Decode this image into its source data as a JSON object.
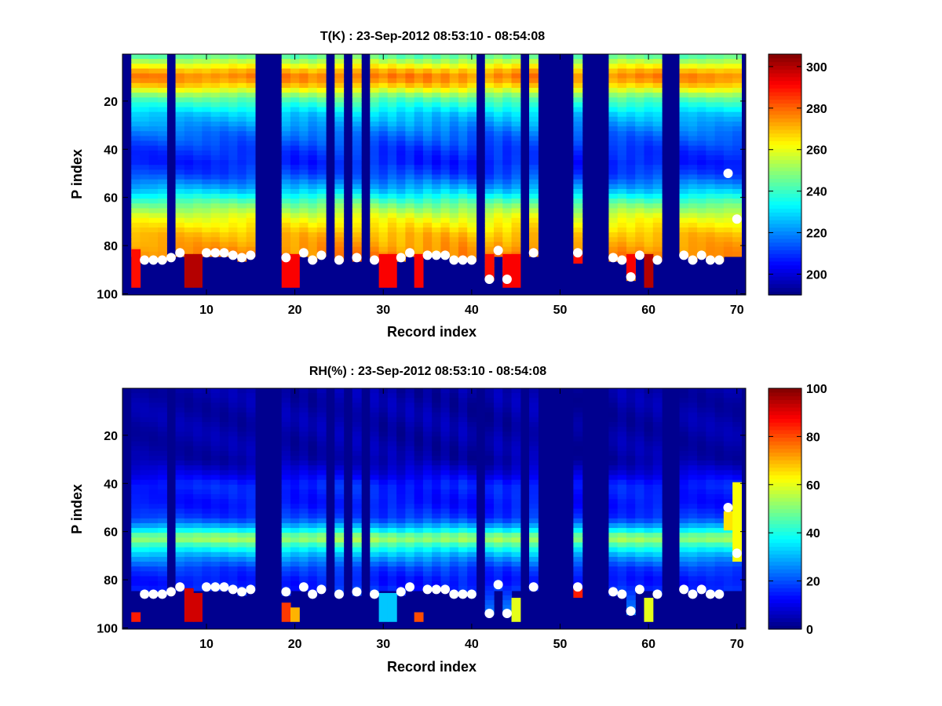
{
  "chart_data": [
    {
      "type": "heatmap",
      "title": "T(K) : 23-Sep-2012 08:53:10 - 08:54:08",
      "xlabel": "Record index",
      "ylabel": "P index",
      "xlim": [
        0.5,
        71
      ],
      "ylim": [
        100,
        1
      ],
      "xticks": [
        10,
        20,
        30,
        40,
        50,
        60,
        70
      ],
      "yticks": [
        20,
        40,
        60,
        80,
        100
      ],
      "colorbar": {
        "range": [
          190,
          306
        ],
        "ticks": [
          200,
          220,
          240,
          260,
          280,
          300
        ]
      },
      "colormap": "jet",
      "background_color": "#00008f",
      "valid_records": [
        2,
        3,
        4,
        5,
        7,
        8,
        9,
        10,
        11,
        12,
        13,
        14,
        15,
        19,
        20,
        21,
        22,
        23,
        25,
        27,
        29,
        30,
        31,
        32,
        33,
        34,
        35,
        36,
        37,
        38,
        39,
        40,
        42,
        43,
        44,
        45,
        47,
        52,
        56,
        57,
        58,
        59,
        60,
        61,
        64,
        65,
        66,
        67,
        68,
        69,
        70
      ],
      "profile": {
        "levels": [
          1,
          5,
          8,
          10,
          13,
          18,
          25,
          33,
          40,
          45,
          50,
          56,
          62,
          68,
          75,
          82,
          88,
          100
        ],
        "values": [
          245,
          262,
          275,
          277,
          268,
          245,
          228,
          217,
          210,
          208,
          212,
          225,
          245,
          260,
          270,
          275,
          278,
          280
        ]
      },
      "surface_markers": {
        "records": [
          3,
          4,
          5,
          6,
          7,
          10,
          11,
          12,
          13,
          14,
          15,
          19,
          21,
          22,
          23,
          25,
          27,
          29,
          32,
          33,
          35,
          36,
          37,
          38,
          39,
          40,
          42,
          43,
          44,
          47,
          52,
          56,
          57,
          58,
          59,
          61,
          64,
          65,
          66,
          67,
          68,
          69,
          70
        ],
        "levels": [
          86,
          86,
          86,
          85,
          83,
          83,
          83,
          83,
          84,
          85,
          84,
          85,
          83,
          86,
          84,
          86,
          85,
          86,
          85,
          83,
          84,
          84,
          84,
          86,
          86,
          86,
          94,
          82,
          94,
          83,
          83,
          85,
          86,
          93,
          84,
          86,
          84,
          86,
          84,
          86,
          86,
          50,
          69
        ]
      },
      "hot_columns": [
        {
          "record": 2,
          "from": 82,
          "to": 97,
          "value": 290
        },
        {
          "record": 8,
          "from": 84,
          "to": 97,
          "value": 300
        },
        {
          "record": 9,
          "from": 84,
          "to": 97,
          "value": 300
        },
        {
          "record": 19,
          "from": 84,
          "to": 97,
          "value": 292
        },
        {
          "record": 20,
          "from": 84,
          "to": 97,
          "value": 292
        },
        {
          "record": 30,
          "from": 84,
          "to": 97,
          "value": 292
        },
        {
          "record": 31,
          "from": 84,
          "to": 97,
          "value": 292
        },
        {
          "record": 34,
          "from": 84,
          "to": 97,
          "value": 292
        },
        {
          "record": 42,
          "from": 84,
          "to": 94,
          "value": 290
        },
        {
          "record": 44,
          "from": 84,
          "to": 97,
          "value": 292
        },
        {
          "record": 45,
          "from": 84,
          "to": 97,
          "value": 292
        },
        {
          "record": 52,
          "from": 84,
          "to": 87,
          "value": 290
        },
        {
          "record": 58,
          "from": 84,
          "to": 93,
          "value": 292
        },
        {
          "record": 60,
          "from": 84,
          "to": 97,
          "value": 300
        }
      ]
    },
    {
      "type": "heatmap",
      "title": "RH(%) : 23-Sep-2012 08:53:10 - 08:54:08",
      "xlabel": "Record index",
      "ylabel": "P index",
      "xlim": [
        0.5,
        71
      ],
      "ylim": [
        100,
        1
      ],
      "xticks": [
        10,
        20,
        30,
        40,
        50,
        60,
        70
      ],
      "yticks": [
        20,
        40,
        60,
        80,
        100
      ],
      "colorbar": {
        "range": [
          0,
          100
        ],
        "ticks": [
          0,
          20,
          40,
          60,
          80,
          100
        ]
      },
      "colormap": "jet",
      "background_color": "#00008f",
      "valid_records": [
        2,
        3,
        4,
        5,
        7,
        8,
        9,
        10,
        11,
        12,
        13,
        14,
        15,
        19,
        20,
        21,
        22,
        23,
        25,
        27,
        29,
        30,
        31,
        32,
        33,
        34,
        35,
        36,
        37,
        38,
        39,
        40,
        42,
        43,
        44,
        45,
        47,
        52,
        56,
        57,
        58,
        59,
        60,
        61,
        64,
        65,
        66,
        67,
        68,
        69,
        70
      ],
      "profile": {
        "levels": [
          1,
          30,
          36,
          40,
          48,
          54,
          58,
          61,
          63,
          66,
          70,
          75,
          80,
          86,
          90,
          96,
          100
        ],
        "values": [
          4,
          4,
          10,
          16,
          14,
          18,
          32,
          48,
          52,
          40,
          28,
          18,
          14,
          18,
          24,
          30,
          30
        ]
      },
      "surface_markers": {
        "records": [
          3,
          4,
          5,
          6,
          7,
          10,
          11,
          12,
          13,
          14,
          15,
          19,
          21,
          22,
          23,
          25,
          27,
          29,
          32,
          33,
          35,
          36,
          37,
          38,
          39,
          40,
          42,
          43,
          44,
          47,
          52,
          56,
          57,
          58,
          59,
          61,
          64,
          65,
          66,
          67,
          68,
          69,
          70
        ],
        "levels": [
          86,
          86,
          86,
          85,
          83,
          83,
          83,
          83,
          84,
          85,
          84,
          85,
          83,
          86,
          84,
          86,
          85,
          86,
          85,
          83,
          84,
          84,
          84,
          86,
          86,
          86,
          94,
          82,
          94,
          83,
          83,
          85,
          86,
          93,
          84,
          86,
          84,
          86,
          84,
          86,
          86,
          50,
          69
        ]
      },
      "hot_columns": [
        {
          "record": 2,
          "from": 94,
          "to": 97,
          "value": 85
        },
        {
          "record": 8,
          "from": 84,
          "to": 97,
          "value": 92
        },
        {
          "record": 9,
          "from": 86,
          "to": 97,
          "value": 92
        },
        {
          "record": 19,
          "from": 90,
          "to": 97,
          "value": 82
        },
        {
          "record": 20,
          "from": 92,
          "to": 97,
          "value": 70
        },
        {
          "record": 30,
          "from": 86,
          "to": 97,
          "value": 32
        },
        {
          "record": 31,
          "from": 86,
          "to": 97,
          "value": 32
        },
        {
          "record": 34,
          "from": 94,
          "to": 97,
          "value": 80
        },
        {
          "record": 45,
          "from": 88,
          "to": 97,
          "value": 60
        },
        {
          "record": 52,
          "from": 84,
          "to": 87,
          "value": 85
        },
        {
          "record": 60,
          "from": 88,
          "to": 97,
          "value": 60
        },
        {
          "record": 69,
          "from": 52,
          "to": 59,
          "value": 65
        },
        {
          "record": 70,
          "from": 40,
          "to": 72,
          "value": 62
        }
      ]
    }
  ]
}
